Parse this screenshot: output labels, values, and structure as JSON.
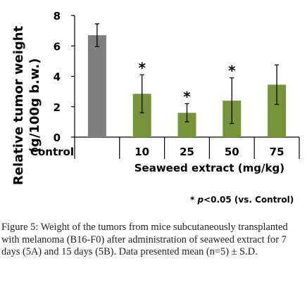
{
  "chart_data": {
    "type": "bar",
    "categories": [
      "Control",
      "10",
      "25",
      "50",
      "75"
    ],
    "values": [
      6.7,
      2.85,
      1.6,
      2.4,
      3.45
    ],
    "errors": [
      0.75,
      1.25,
      0.6,
      1.5,
      1.3
    ],
    "bar_colors": [
      "#7f7f7f",
      "#77933c",
      "#77933c",
      "#77933c",
      "#77933c"
    ],
    "significant": [
      false,
      true,
      true,
      true,
      false
    ],
    "significance_marker": "*",
    "ylabel_line1": "Relative tumor weight",
    "ylabel_line2": "(g/100g b.w.)",
    "xgroup_label": "Seaweed  extract (mg/kg)",
    "ylim": [
      0,
      8
    ],
    "yticks": [
      "0",
      "2",
      "4",
      "6",
      "8"
    ],
    "grid": false
  },
  "footnote": {
    "star": "*",
    "p": "p",
    "rest": "<0.05 (vs. Control)"
  },
  "caption": {
    "label": "Figure 5:",
    "text": " Weight of the tumors from mice subcutaneously transplanted with melanoma (B16-F0) after administration of seaweed extract for 7 days (5A) and 15 days (5B). Data presented mean (n=5) ± S.D."
  }
}
